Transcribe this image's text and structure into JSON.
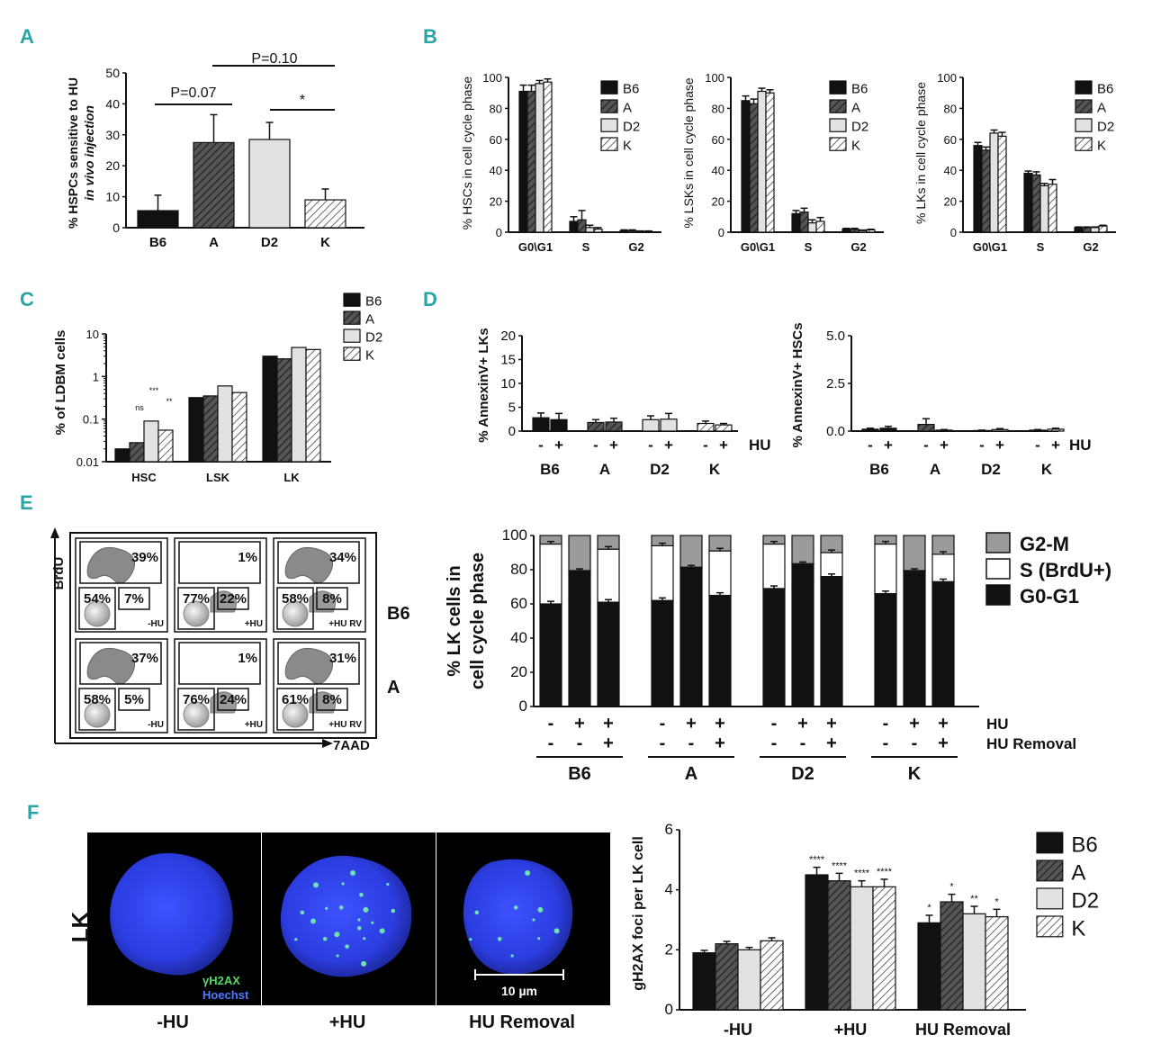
{
  "panel_labels": [
    "A",
    "B",
    "C",
    "D",
    "E",
    "F"
  ],
  "colors": {
    "B6": "#111111",
    "A": "#555555",
    "D2": "#e2e2e2",
    "K": "#ffffff",
    "hatch": "#333333",
    "G2M": "#9a9a9a",
    "S": "#ffffff",
    "G0G1": "#111111",
    "panel_label": "#2aa4a4",
    "nucleus": "#2f3fe6",
    "foci": "#6fe0b0"
  },
  "legend": {
    "strains": [
      "B6",
      "A",
      "D2",
      "K"
    ]
  },
  "panelA": {
    "ylabel_line1": "% HSPCs sensitive to HU",
    "ylabel_line2": "in vivo injection",
    "pvals": [
      "P=0.07",
      "P=0.10",
      "*"
    ]
  },
  "panelB": {
    "ylabels": [
      "% HSCs in cell cycle phase",
      "% LSKs in cell cycle phase",
      "% LKs in cell cycle phase"
    ]
  },
  "panelC": {
    "ylabel": "% of LDBM cells",
    "sig": [
      "ns",
      "***",
      "**"
    ]
  },
  "panelD": {
    "ylabels": [
      "% AnnexinV+ LKs",
      "% AnnexinV+ HSCs"
    ],
    "hu_label": "HU",
    "signs": [
      "-",
      "+"
    ]
  },
  "panelE": {
    "flow": {
      "axis_y": "BrdU",
      "axis_x": "7AAD",
      "rows": [
        "B6",
        "A"
      ],
      "cells": [
        {
          "top": "39%",
          "bl": "54%",
          "br": "7%",
          "cond": "-HU"
        },
        {
          "top": "1%",
          "bl": "77%",
          "br": "22%",
          "cond": "+HU"
        },
        {
          "top": "34%",
          "bl": "58%",
          "br": "8%",
          "cond": "+HU RV"
        },
        {
          "top": "37%",
          "bl": "58%",
          "br": "5%",
          "cond": "-HU"
        },
        {
          "top": "1%",
          "bl": "76%",
          "br": "24%",
          "cond": "+HU"
        },
        {
          "top": "31%",
          "bl": "61%",
          "br": "8%",
          "cond": "+HU RV"
        }
      ]
    },
    "ylabel_line1": "% LK cells in",
    "ylabel_line2": "cell cycle phase",
    "row_labels": [
      "HU",
      "HU Removal"
    ],
    "hu_signs": [
      "-",
      "+",
      "+"
    ],
    "removal_signs": [
      "-",
      "-",
      "+"
    ]
  },
  "panelF": {
    "row_label": "LK",
    "image_labels": [
      "-HU",
      "+HU",
      "HU Removal"
    ],
    "stain1": "γH2AX",
    "stain2": "Hoechst",
    "scale": "10 µm",
    "ylabel": "gH2AX foci per LK cell"
  },
  "chart_data": [
    {
      "id": "A",
      "type": "bar",
      "title": "",
      "ylabel": "% HSPCs sensitive to HU in vivo injection",
      "categories": [
        "B6",
        "A",
        "D2",
        "K"
      ],
      "values": [
        5.5,
        27.5,
        28.5,
        9
      ],
      "errors": [
        5,
        9,
        5.5,
        3.5
      ],
      "ylim": [
        0,
        50
      ],
      "yticks": [
        0,
        10,
        20,
        30,
        40,
        50
      ],
      "annotations": [
        {
          "text": "P=0.07",
          "between": [
            "B6",
            "A"
          ]
        },
        {
          "text": "P=0.10",
          "between": [
            "A",
            "K"
          ]
        },
        {
          "text": "*",
          "between": [
            "D2",
            "K"
          ]
        }
      ]
    },
    {
      "id": "B1",
      "type": "bar",
      "ylabel": "% HSCs in cell cycle phase",
      "categories": [
        "G0\\G1",
        "S",
        "G2"
      ],
      "series": [
        {
          "name": "B6",
          "values": [
            91,
            7,
            1
          ],
          "errors": [
            4,
            3,
            0.5
          ]
        },
        {
          "name": "A",
          "values": [
            91,
            8,
            1
          ],
          "errors": [
            4,
            6,
            0.5
          ]
        },
        {
          "name": "D2",
          "values": [
            96,
            3,
            0.5
          ],
          "errors": [
            2,
            1.5,
            0.3
          ]
        },
        {
          "name": "K",
          "values": [
            97,
            2,
            0.5
          ],
          "errors": [
            2,
            1,
            0.3
          ]
        }
      ],
      "ylim": [
        0,
        100
      ],
      "yticks": [
        0,
        20,
        40,
        60,
        80,
        100
      ],
      "legend": "top-right"
    },
    {
      "id": "B2",
      "type": "bar",
      "ylabel": "% LSKs in cell cycle phase",
      "categories": [
        "G0\\G1",
        "S",
        "G2"
      ],
      "series": [
        {
          "name": "B6",
          "values": [
            85,
            12,
            2
          ],
          "errors": [
            3,
            2,
            0.5
          ]
        },
        {
          "name": "A",
          "values": [
            83,
            13,
            2
          ],
          "errors": [
            3,
            2.5,
            0.5
          ]
        },
        {
          "name": "D2",
          "values": [
            91,
            6,
            1
          ],
          "errors": [
            2,
            2,
            0.4
          ]
        },
        {
          "name": "K",
          "values": [
            90,
            7,
            1.5
          ],
          "errors": [
            2,
            2.5,
            0.4
          ]
        }
      ],
      "ylim": [
        0,
        100
      ],
      "yticks": [
        0,
        20,
        40,
        60,
        80,
        100
      ],
      "legend": "top-right"
    },
    {
      "id": "B3",
      "type": "bar",
      "ylabel": "% LKs in cell cycle phase",
      "categories": [
        "G0\\G1",
        "S",
        "G2"
      ],
      "series": [
        {
          "name": "B6",
          "values": [
            56,
            38,
            3
          ],
          "errors": [
            2,
            1.5,
            0.4
          ]
        },
        {
          "name": "A",
          "values": [
            53,
            37,
            3
          ],
          "errors": [
            2,
            2,
            0.4
          ]
        },
        {
          "name": "D2",
          "values": [
            64,
            30,
            3
          ],
          "errors": [
            2,
            1.5,
            0.4
          ]
        },
        {
          "name": "K",
          "values": [
            62,
            31,
            4
          ],
          "errors": [
            2.5,
            3,
            0.5
          ]
        }
      ],
      "ylim": [
        0,
        100
      ],
      "yticks": [
        0,
        20,
        40,
        60,
        80,
        100
      ],
      "legend": "top-right"
    },
    {
      "id": "C",
      "type": "bar",
      "yscale": "log",
      "ylabel": "% of LDBM cells",
      "categories": [
        "HSC",
        "LSK",
        "LK"
      ],
      "series": [
        {
          "name": "B6",
          "values": [
            0.02,
            0.32,
            3.0
          ]
        },
        {
          "name": "A",
          "values": [
            0.028,
            0.35,
            2.6
          ]
        },
        {
          "name": "D2",
          "values": [
            0.09,
            0.6,
            4.8
          ]
        },
        {
          "name": "K",
          "values": [
            0.055,
            0.42,
            4.3
          ]
        }
      ],
      "ylim": [
        0.01,
        10
      ],
      "yticks": [
        0.01,
        0.1,
        1,
        10
      ],
      "legend": "top-right"
    },
    {
      "id": "D1",
      "type": "bar",
      "ylabel": "% AnnexinV+ LKs",
      "categories": [
        "B6",
        "A",
        "D2",
        "K"
      ],
      "groups": [
        "-",
        "+"
      ],
      "values": [
        [
          2.8,
          2.4
        ],
        [
          1.8,
          1.9
        ],
        [
          2.4,
          2.5
        ],
        [
          1.6,
          1.3
        ]
      ],
      "errors": [
        [
          1,
          1.3
        ],
        [
          0.6,
          0.8
        ],
        [
          0.8,
          1.2
        ],
        [
          0.5,
          0.3
        ]
      ],
      "ylim": [
        0,
        20
      ],
      "yticks": [
        0,
        5,
        10,
        15,
        20
      ]
    },
    {
      "id": "D2",
      "type": "bar",
      "ylabel": "% AnnexinV+ HSCs",
      "categories": [
        "B6",
        "A",
        "D2",
        "K"
      ],
      "groups": [
        "-",
        "+"
      ],
      "values": [
        [
          0.1,
          0.15
        ],
        [
          0.35,
          0.05
        ],
        [
          0.03,
          0.08
        ],
        [
          0.05,
          0.1
        ]
      ],
      "errors": [
        [
          0.05,
          0.1
        ],
        [
          0.3,
          0.03
        ],
        [
          0.02,
          0.05
        ],
        [
          0.03,
          0.05
        ]
      ],
      "ylim": [
        0,
        5
      ],
      "yticks": [
        "0.0",
        "2.5",
        "5.0"
      ]
    },
    {
      "id": "E",
      "type": "bar",
      "stacked": true,
      "ylabel": "% LK cells in cell cycle phase",
      "categories": [
        "B6",
        "A",
        "D2",
        "K"
      ],
      "conditions": [
        "-HU",
        "+HU",
        "HU Removal"
      ],
      "series": [
        {
          "name": "G0-G1",
          "values": [
            [
              60,
              79,
              61
            ],
            [
              62,
              81,
              65
            ],
            [
              69,
              83,
              76
            ],
            [
              66,
              79,
              73
            ]
          ]
        },
        {
          "name": "S (BrdU+)",
          "values": [
            [
              35,
              0.5,
              31
            ],
            [
              32,
              0.5,
              26
            ],
            [
              26,
              0.5,
              14
            ],
            [
              29,
              0.5,
              16
            ]
          ]
        },
        {
          "name": "G2-M",
          "values": [
            [
              5,
              20.5,
              8
            ],
            [
              6,
              18.5,
              9
            ],
            [
              5,
              16.5,
              10
            ],
            [
              5,
              20.5,
              11
            ]
          ]
        }
      ],
      "ylim": [
        0,
        100
      ],
      "yticks": [
        0,
        20,
        40,
        60,
        80,
        100
      ],
      "legend": "top-right"
    },
    {
      "id": "F",
      "type": "bar",
      "ylabel": "gH2AX foci per LK cell",
      "categories": [
        "-HU",
        "+HU",
        "HU Removal"
      ],
      "series": [
        {
          "name": "B6",
          "values": [
            1.9,
            4.5,
            2.9
          ],
          "errors": [
            0.08,
            0.25,
            0.25
          ],
          "sig": [
            "",
            "****",
            "*"
          ]
        },
        {
          "name": "A",
          "values": [
            2.2,
            4.3,
            3.6
          ],
          "errors": [
            0.08,
            0.25,
            0.25
          ],
          "sig": [
            "",
            "****",
            "*"
          ]
        },
        {
          "name": "D2",
          "values": [
            2.0,
            4.1,
            3.2
          ],
          "errors": [
            0.08,
            0.2,
            0.25
          ],
          "sig": [
            "",
            "****",
            "**"
          ]
        },
        {
          "name": "K",
          "values": [
            2.3,
            4.1,
            3.1
          ],
          "errors": [
            0.1,
            0.25,
            0.25
          ],
          "sig": [
            "",
            "****",
            "*"
          ]
        }
      ],
      "ylim": [
        0,
        6
      ],
      "yticks": [
        0,
        2,
        4,
        6
      ],
      "legend": "top-right"
    }
  ]
}
